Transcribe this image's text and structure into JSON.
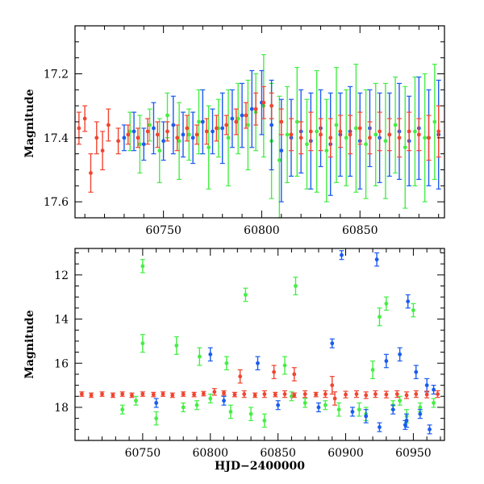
{
  "chart_data": [
    {
      "type": "scatter",
      "title": "",
      "xlabel": "",
      "ylabel": "Magnitude",
      "xlim": [
        60705,
        60893
      ],
      "ylim": [
        17.65,
        17.05
      ],
      "y_inverted": true,
      "xticks": [
        60750,
        60800,
        60850
      ],
      "xtick_labels": [
        "60750",
        "60800",
        "60850"
      ],
      "yticks": [
        17.2,
        17.4,
        17.6
      ],
      "ytick_labels": [
        "17.2",
        "17.4",
        "17.6"
      ],
      "series": [
        {
          "name": "green",
          "color": "#44ee44",
          "x": [
            60733,
            60738,
            60743,
            60748,
            60752,
            60758,
            60763,
            60768,
            60773,
            60778,
            60783,
            60788,
            60793,
            60797,
            60801,
            60805,
            60809,
            60813,
            60818,
            60823,
            60828,
            60833,
            60838,
            60843,
            60848,
            60853,
            60858,
            60863,
            60868,
            60873,
            60878,
            60883,
            60888
          ],
          "y": [
            17.38,
            17.42,
            17.36,
            17.44,
            17.33,
            17.41,
            17.39,
            17.35,
            17.43,
            17.37,
            17.4,
            17.34,
            17.36,
            17.32,
            17.3,
            17.41,
            17.47,
            17.39,
            17.35,
            17.42,
            17.38,
            17.44,
            17.36,
            17.4,
            17.37,
            17.42,
            17.39,
            17.41,
            17.36,
            17.43,
            17.38,
            17.4,
            17.35
          ],
          "err": [
            0.06,
            0.09,
            0.05,
            0.1,
            0.07,
            0.12,
            0.08,
            0.1,
            0.13,
            0.09,
            0.15,
            0.11,
            0.14,
            0.12,
            0.16,
            0.18,
            0.2,
            0.15,
            0.17,
            0.14,
            0.19,
            0.16,
            0.18,
            0.15,
            0.2,
            0.17,
            0.16,
            0.18,
            0.15,
            0.19,
            0.17,
            0.2,
            0.18
          ]
        },
        {
          "name": "blue",
          "color": "#1a5cf0",
          "x": [
            60730,
            60735,
            60740,
            60745,
            60750,
            60755,
            60760,
            60765,
            60770,
            60775,
            60780,
            60785,
            60790,
            60795,
            60800,
            60805,
            60810,
            60815,
            60820,
            60825,
            60830,
            60835,
            60840,
            60845,
            60850,
            60855,
            60860,
            60865,
            60870,
            60875,
            60880,
            60885,
            60890
          ],
          "y": [
            17.4,
            17.38,
            17.42,
            17.37,
            17.41,
            17.36,
            17.39,
            17.4,
            17.35,
            17.38,
            17.37,
            17.34,
            17.33,
            17.31,
            17.29,
            17.36,
            17.44,
            17.4,
            17.38,
            17.41,
            17.37,
            17.42,
            17.39,
            17.38,
            17.41,
            17.37,
            17.4,
            17.39,
            17.38,
            17.41,
            17.37,
            17.4,
            17.39
          ],
          "err": [
            0.04,
            0.06,
            0.05,
            0.08,
            0.06,
            0.09,
            0.07,
            0.08,
            0.1,
            0.07,
            0.11,
            0.09,
            0.1,
            0.12,
            0.1,
            0.14,
            0.16,
            0.12,
            0.13,
            0.15,
            0.12,
            0.16,
            0.13,
            0.14,
            0.15,
            0.12,
            0.14,
            0.13,
            0.15,
            0.14,
            0.16,
            0.15,
            0.17
          ]
        },
        {
          "name": "red",
          "color": "#f04530",
          "x": [
            60707,
            60710,
            60713,
            60716,
            60719,
            60722,
            60727,
            60732,
            60737,
            60742,
            60747,
            60752,
            60757,
            60762,
            60767,
            60772,
            60777,
            60782,
            60787,
            60792,
            60797,
            60801,
            60805,
            60810,
            60815,
            60820,
            60825,
            60830,
            60835,
            60840,
            60845,
            60850,
            60855,
            60860,
            60865,
            60870,
            60875,
            60880,
            60885,
            60890
          ],
          "y": [
            17.37,
            17.34,
            17.51,
            17.4,
            17.44,
            17.36,
            17.41,
            17.39,
            17.4,
            17.38,
            17.39,
            17.38,
            17.4,
            17.37,
            17.39,
            17.38,
            17.37,
            17.36,
            17.35,
            17.33,
            17.31,
            17.29,
            17.3,
            17.35,
            17.39,
            17.4,
            17.38,
            17.39,
            17.4,
            17.38,
            17.39,
            17.37,
            17.4,
            17.38,
            17.39,
            17.4,
            17.38,
            17.39,
            17.4,
            17.38
          ],
          "err": [
            0.05,
            0.04,
            0.06,
            0.05,
            0.06,
            0.05,
            0.04,
            0.03,
            0.03,
            0.04,
            0.04,
            0.03,
            0.04,
            0.04,
            0.03,
            0.04,
            0.04,
            0.03,
            0.04,
            0.04,
            0.05,
            0.05,
            0.04,
            0.04,
            0.05,
            0.05,
            0.06,
            0.05,
            0.06,
            0.05,
            0.06,
            0.05,
            0.05,
            0.06,
            0.05,
            0.06,
            0.06,
            0.05,
            0.07,
            0.08
          ]
        }
      ]
    },
    {
      "type": "scatter",
      "title": "",
      "xlabel": "HJD−2400000",
      "ylabel": "Magnitude",
      "xlim": [
        60700,
        60973
      ],
      "ylim": [
        19.5,
        10.8
      ],
      "y_inverted": true,
      "xticks": [
        60750,
        60800,
        60850,
        60900,
        60950
      ],
      "xtick_labels": [
        "60750",
        "60800",
        "60850",
        "60900",
        "60950"
      ],
      "yticks": [
        12,
        14,
        16,
        18
      ],
      "ytick_labels": [
        "12",
        "14",
        "16",
        "18"
      ],
      "series": [
        {
          "name": "green",
          "color": "#44ee44",
          "x": [
            60750,
            60750,
            60775,
            60792,
            60812,
            60826,
            60855,
            60863,
            60925,
            60930,
            60950,
            60920,
            60735,
            60760,
            60790,
            60815,
            60840,
            60870,
            60895,
            60915,
            60935,
            60945,
            60955,
            60965,
            60745,
            60780,
            60800,
            60830,
            60860,
            60885,
            60910,
            60940
          ],
          "y": [
            11.6,
            15.1,
            15.2,
            15.7,
            16.0,
            12.9,
            16.1,
            12.5,
            13.9,
            13.3,
            13.6,
            16.3,
            18.1,
            18.5,
            17.9,
            18.2,
            18.6,
            17.8,
            18.1,
            18.3,
            17.9,
            18.4,
            18.0,
            17.8,
            17.7,
            18.0,
            17.6,
            18.3,
            17.5,
            17.9,
            18.1,
            17.7
          ],
          "err": [
            0.3,
            0.4,
            0.4,
            0.4,
            0.3,
            0.3,
            0.4,
            0.4,
            0.4,
            0.3,
            0.3,
            0.4,
            0.2,
            0.3,
            0.2,
            0.3,
            0.3,
            0.2,
            0.3,
            0.3,
            0.2,
            0.3,
            0.2,
            0.2,
            0.2,
            0.2,
            0.2,
            0.3,
            0.2,
            0.2,
            0.3,
            0.2
          ]
        },
        {
          "name": "blue",
          "color": "#1a5cf0",
          "x": [
            60897,
            60923,
            60946,
            60890,
            60800,
            60835,
            60930,
            60940,
            60952,
            60960,
            60965,
            60760,
            60810,
            60850,
            60880,
            60905,
            60915,
            60935,
            60945,
            60955,
            60925,
            60944,
            60962
          ],
          "y": [
            11.1,
            11.3,
            13.2,
            15.1,
            15.6,
            16.0,
            15.9,
            15.6,
            16.4,
            17.0,
            17.2,
            17.8,
            17.7,
            17.9,
            18.0,
            18.2,
            18.4,
            18.1,
            18.6,
            18.3,
            18.9,
            18.8,
            19.0
          ],
          "err": [
            0.2,
            0.3,
            0.3,
            0.2,
            0.3,
            0.3,
            0.3,
            0.3,
            0.3,
            0.3,
            0.2,
            0.2,
            0.2,
            0.2,
            0.2,
            0.2,
            0.3,
            0.2,
            0.3,
            0.2,
            0.2,
            0.2,
            0.2
          ]
        },
        {
          "name": "red",
          "color": "#f04530",
          "x": [
            60705,
            60712,
            60720,
            60728,
            60735,
            60742,
            60750,
            60758,
            60765,
            60772,
            60780,
            60788,
            60795,
            60803,
            60810,
            60818,
            60825,
            60833,
            60840,
            60848,
            60855,
            60862,
            60870,
            60878,
            60885,
            60892,
            60900,
            60908,
            60915,
            60922,
            60930,
            60938,
            60945,
            60952,
            60960,
            60968,
            60822,
            60847,
            60862,
            60890
          ],
          "y": [
            17.4,
            17.45,
            17.4,
            17.45,
            17.4,
            17.45,
            17.4,
            17.42,
            17.4,
            17.45,
            17.4,
            17.42,
            17.38,
            17.3,
            17.35,
            17.42,
            17.4,
            17.45,
            17.4,
            17.42,
            17.4,
            17.45,
            17.4,
            17.42,
            17.4,
            17.6,
            17.42,
            17.4,
            17.45,
            17.4,
            17.42,
            17.4,
            17.45,
            17.4,
            17.42,
            17.4,
            16.6,
            16.4,
            16.5,
            17.0
          ],
          "err": [
            0.1,
            0.1,
            0.1,
            0.1,
            0.1,
            0.1,
            0.1,
            0.1,
            0.1,
            0.1,
            0.1,
            0.1,
            0.1,
            0.15,
            0.1,
            0.1,
            0.15,
            0.1,
            0.15,
            0.1,
            0.15,
            0.1,
            0.15,
            0.1,
            0.15,
            0.3,
            0.15,
            0.15,
            0.15,
            0.15,
            0.15,
            0.15,
            0.15,
            0.15,
            0.15,
            0.15,
            0.3,
            0.3,
            0.3,
            0.4
          ]
        }
      ]
    }
  ]
}
